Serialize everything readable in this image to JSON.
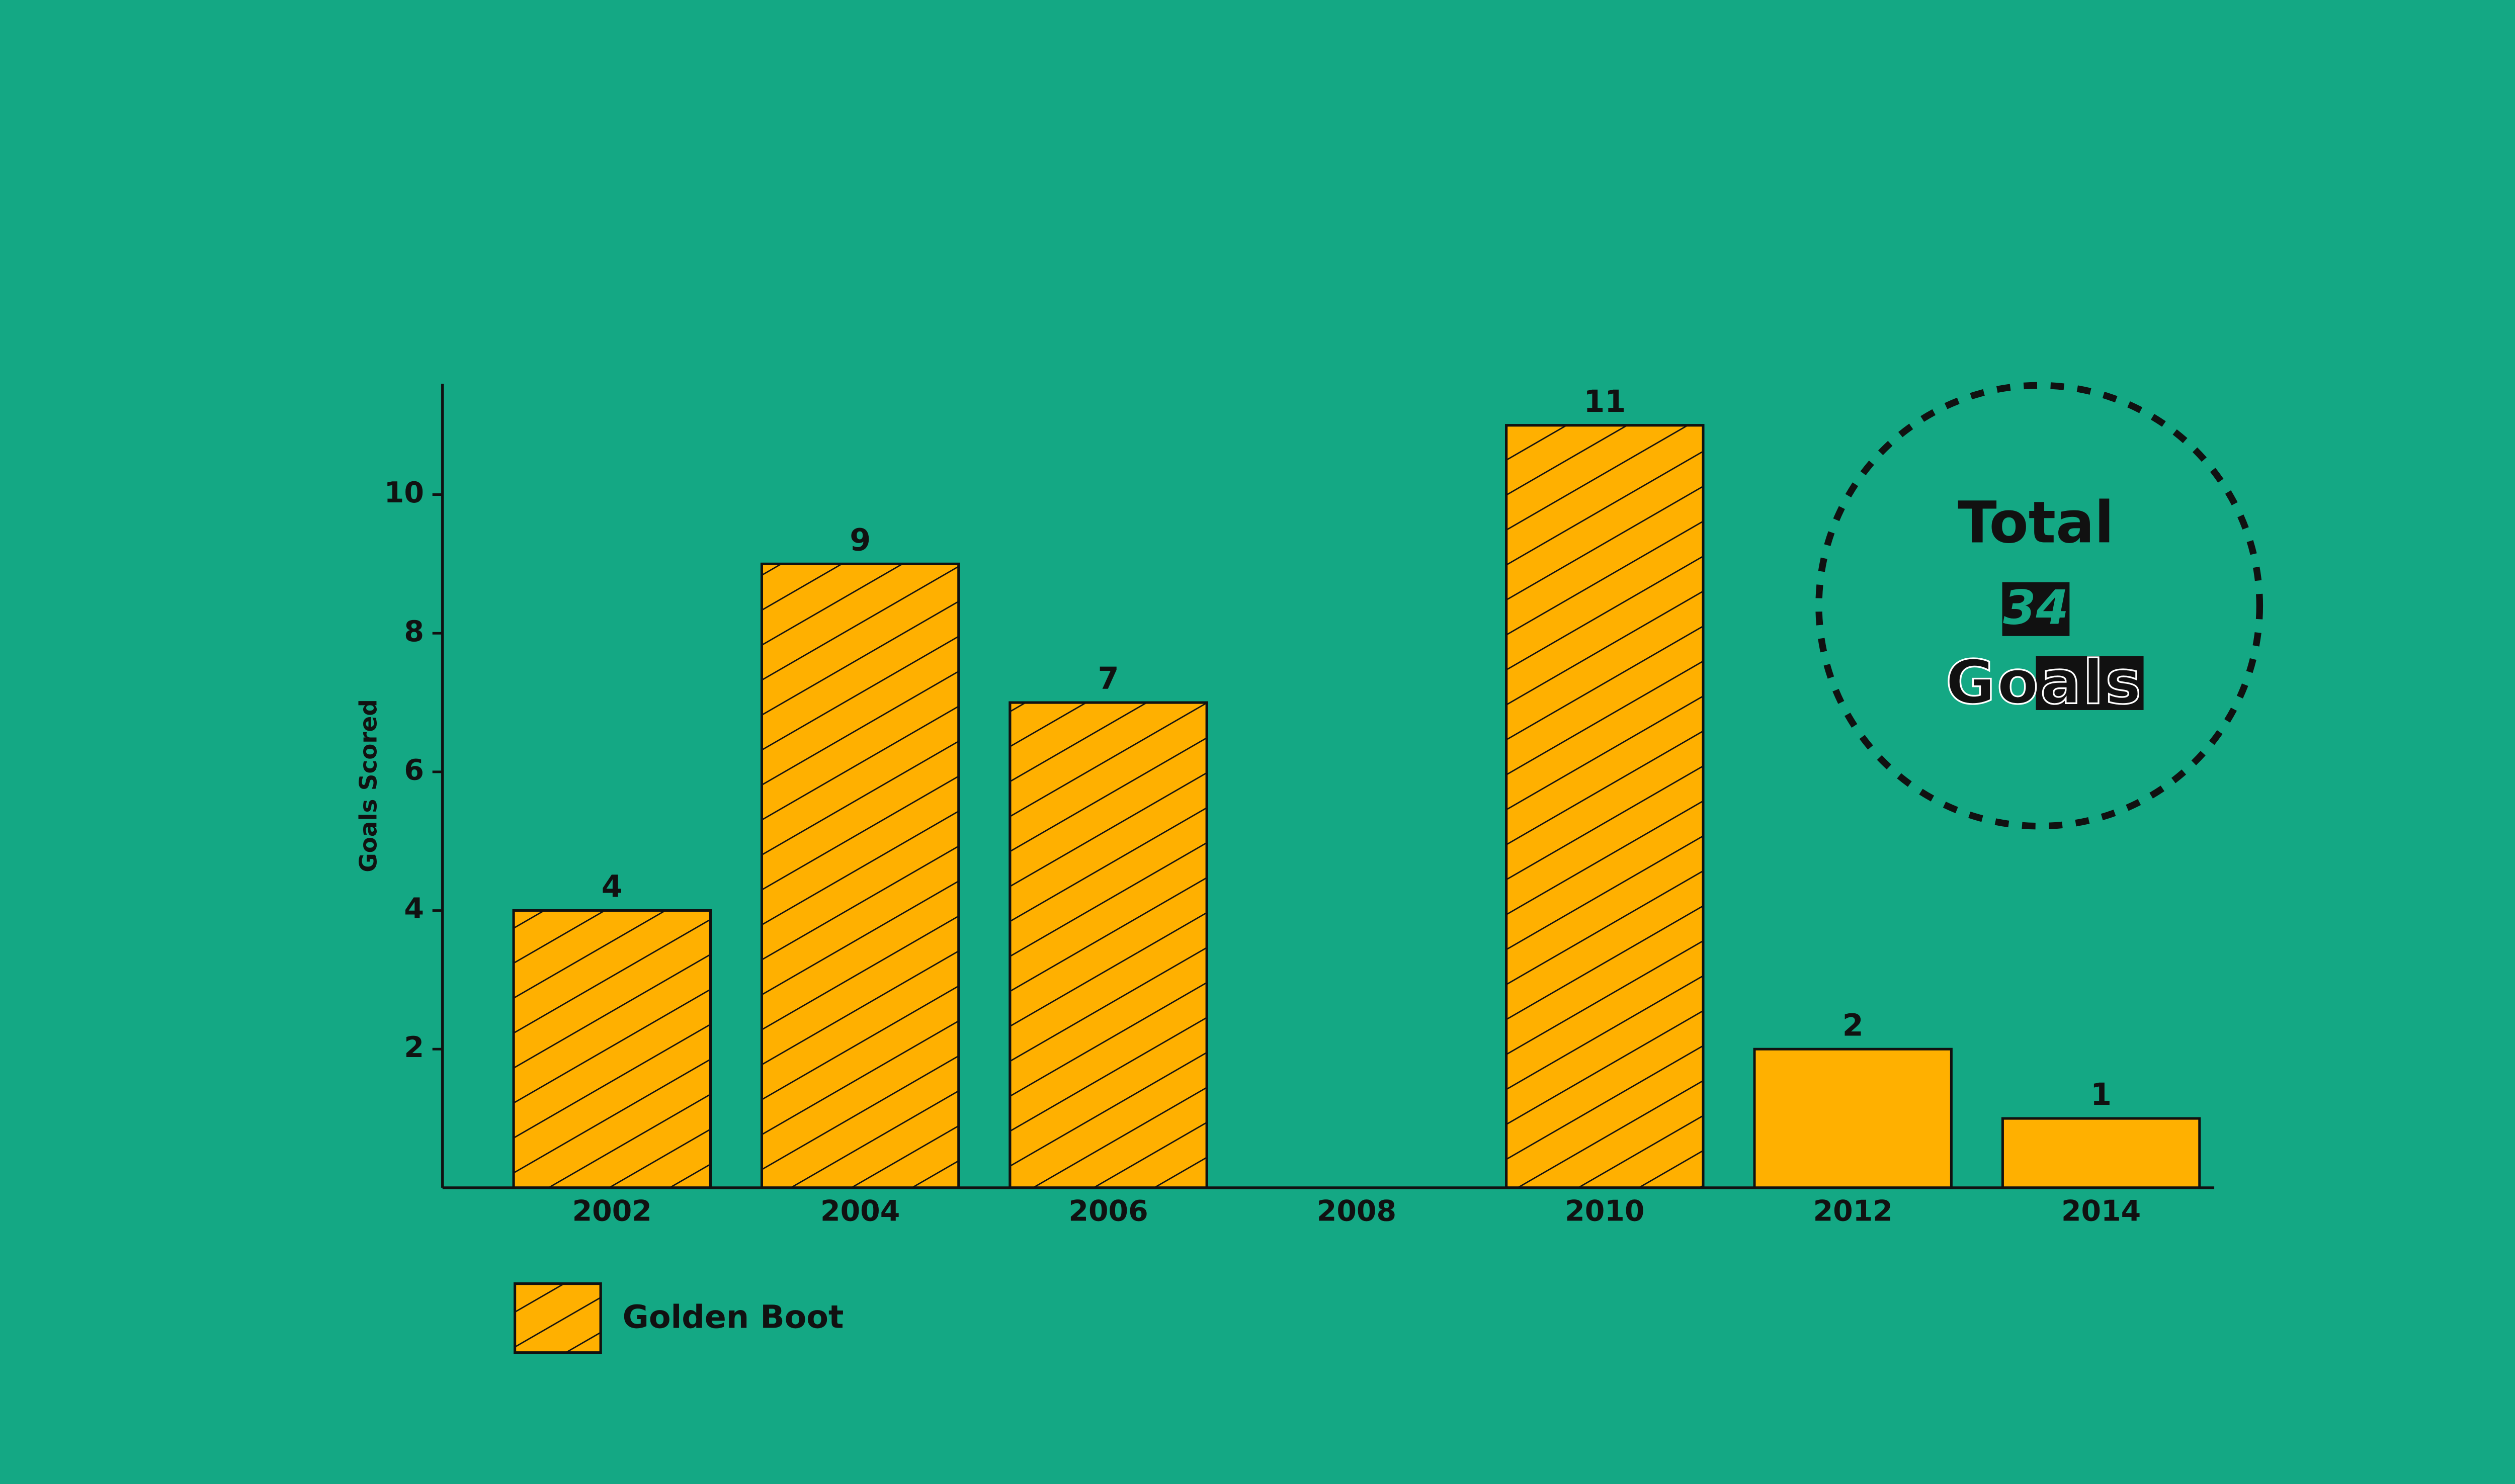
{
  "chart_data": {
    "type": "bar",
    "y_label": "Goals Scored",
    "categories": [
      "2002",
      "2004",
      "2006",
      "2008",
      "2010",
      "2012",
      "2014"
    ],
    "values": [
      4,
      9,
      7,
      null,
      11,
      2,
      1
    ],
    "hatched": [
      true,
      true,
      true,
      false,
      true,
      false,
      false
    ],
    "color": "#ffb000",
    "ylim": [
      0,
      11.6
    ],
    "yticks": [
      2,
      4,
      6,
      8,
      10
    ],
    "legend": {
      "label": "Golden Boot"
    },
    "annotation": {
      "line1": "Total",
      "line2": "34",
      "line3": "Goals"
    }
  }
}
